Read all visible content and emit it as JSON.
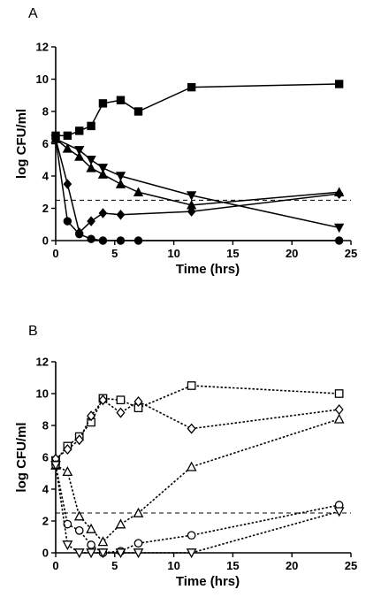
{
  "chart_data": [
    {
      "panel": "A",
      "type": "line",
      "xlabel": "Time (hrs)",
      "ylabel": "log CFU/ml",
      "xlim": [
        0,
        25
      ],
      "ylim": [
        0,
        12
      ],
      "xticks": [
        0,
        5,
        10,
        15,
        20,
        25
      ],
      "yticks": [
        0,
        2,
        4,
        6,
        8,
        10,
        12
      ],
      "grid": false,
      "reference_line": {
        "y": 2.5,
        "style": "dashed"
      },
      "series": [
        {
          "marker": "square-filled",
          "line": "solid",
          "x": [
            0,
            1,
            2,
            3,
            4,
            5.5,
            7,
            11.5,
            24
          ],
          "y": [
            6.5,
            6.5,
            6.8,
            7.1,
            8.5,
            8.7,
            8.0,
            9.5,
            9.7
          ]
        },
        {
          "marker": "triangle-down-filled",
          "line": "solid",
          "x": [
            0,
            2,
            3,
            4,
            5.5,
            11.5,
            24
          ],
          "y": [
            6.3,
            5.6,
            5.0,
            4.5,
            4.0,
            2.8,
            0.8
          ]
        },
        {
          "marker": "triangle-up-filled",
          "line": "solid",
          "x": [
            0,
            1,
            2,
            3,
            4,
            5.5,
            7,
            11.5,
            24
          ],
          "y": [
            6.3,
            5.7,
            5.2,
            4.5,
            4.1,
            3.5,
            3.0,
            2.2,
            3.0
          ]
        },
        {
          "marker": "diamond-filled",
          "line": "solid",
          "x": [
            0,
            1,
            2,
            3,
            4,
            5.5,
            11.5,
            24
          ],
          "y": [
            6.3,
            3.5,
            0.5,
            1.2,
            1.7,
            1.6,
            1.8,
            2.9
          ]
        },
        {
          "marker": "circle-filled",
          "line": "solid",
          "x": [
            0,
            1,
            2,
            3,
            4,
            5.5,
            7,
            24
          ],
          "y": [
            6.3,
            1.2,
            0.4,
            0.1,
            0.0,
            0.0,
            0.0,
            0.0
          ]
        }
      ]
    },
    {
      "panel": "B",
      "type": "line",
      "xlabel": "Time (hrs)",
      "ylabel": "log CFU/ml",
      "xlim": [
        0,
        25
      ],
      "ylim": [
        0,
        12
      ],
      "xticks": [
        0,
        5,
        10,
        15,
        20,
        25
      ],
      "yticks": [
        0,
        2,
        4,
        6,
        8,
        10,
        12
      ],
      "grid": false,
      "reference_line": {
        "y": 2.5,
        "style": "dashed"
      },
      "series": [
        {
          "marker": "square-open",
          "line": "dotted",
          "x": [
            0,
            1,
            2,
            3,
            4,
            5.5,
            7,
            11.5,
            24
          ],
          "y": [
            5.8,
            6.7,
            7.3,
            8.2,
            9.7,
            9.6,
            9.1,
            10.5,
            10.0
          ]
        },
        {
          "marker": "diamond-open",
          "line": "dotted",
          "x": [
            0,
            1,
            2,
            3,
            4,
            5.5,
            7,
            11.5,
            24
          ],
          "y": [
            5.9,
            6.5,
            7.1,
            8.6,
            9.6,
            8.8,
            9.5,
            7.8,
            9.0
          ]
        },
        {
          "marker": "triangle-up-open",
          "line": "dotted",
          "x": [
            0,
            1,
            2,
            3,
            4,
            5.5,
            7,
            11.5,
            24
          ],
          "y": [
            5.5,
            5.1,
            2.3,
            1.5,
            0.7,
            1.8,
            2.5,
            5.4,
            8.4
          ]
        },
        {
          "marker": "circle-open",
          "line": "dotted",
          "x": [
            0,
            1,
            2,
            3,
            4,
            5.5,
            7,
            11.5,
            24
          ],
          "y": [
            5.5,
            1.8,
            1.4,
            0.5,
            0.0,
            0.1,
            0.6,
            1.1,
            3.0
          ]
        },
        {
          "marker": "triangle-down-open",
          "line": "dotted",
          "x": [
            0,
            1,
            2,
            3,
            4,
            5.5,
            7,
            11.5,
            24
          ],
          "y": [
            5.5,
            0.5,
            0.0,
            0.0,
            0.0,
            0.0,
            0.0,
            0.0,
            2.6
          ]
        }
      ]
    }
  ]
}
